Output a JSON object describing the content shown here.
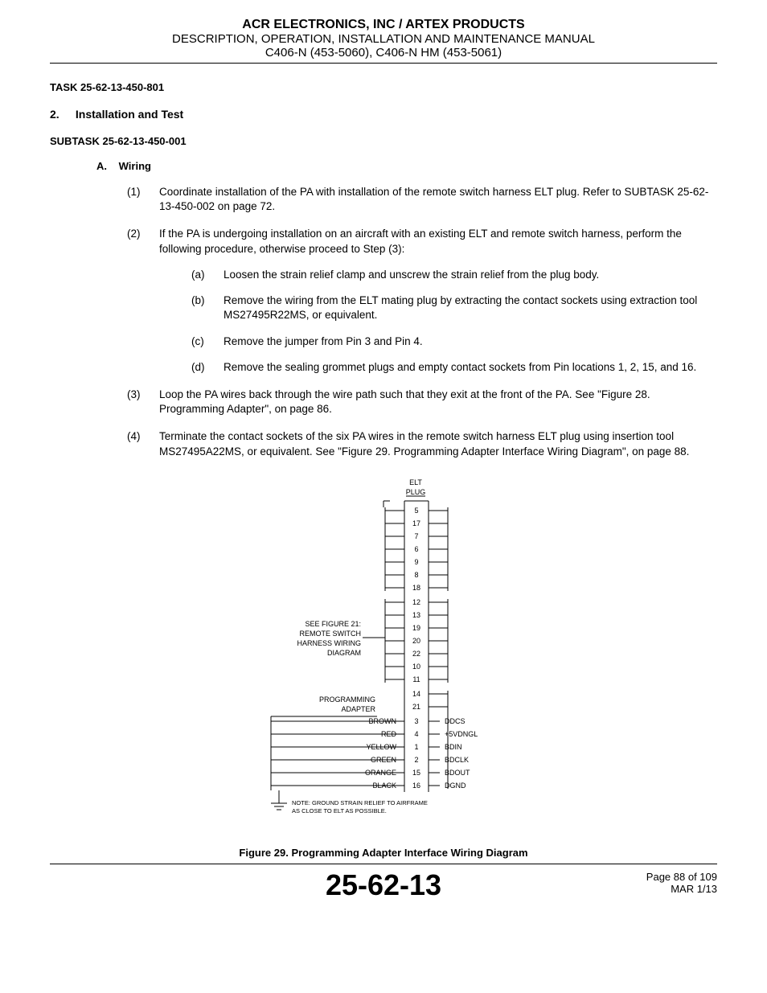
{
  "header": {
    "company": "ACR ELECTRONICS, INC / ARTEX PRODUCTS",
    "subtitle": "DESCRIPTION, OPERATION, INSTALLATION AND MAINTENANCE MANUAL",
    "models": "C406-N (453-5060), C406-N HM (453-5061)"
  },
  "task": "TASK  25-62-13-450-801",
  "section": {
    "num": "2.",
    "title": "Installation and Test"
  },
  "subtask": "SUBTASK  25-62-13-450-001",
  "subsection": {
    "letter": "A.",
    "title": "Wiring"
  },
  "items": {
    "1": {
      "marker": "(1)",
      "text": "Coordinate installation of the PA with installation of the remote switch harness ELT plug. Refer to SUBTASK 25-62-13-450-002 on page 72."
    },
    "2": {
      "marker": "(2)",
      "text": "If the PA is undergoing installation on an aircraft with an existing ELT and remote switch harness, perform the following procedure, otherwise proceed to Step (3):",
      "sub": {
        "a": {
          "marker": "(a)",
          "text": "Loosen the strain relief clamp and unscrew the strain relief from the plug body."
        },
        "b": {
          "marker": "(b)",
          "text": "Remove the wiring from the ELT mating plug by extracting the contact sockets using extraction tool MS27495R22MS, or equivalent."
        },
        "c": {
          "marker": "(c)",
          "text": "Remove the jumper from Pin 3 and Pin 4."
        },
        "d": {
          "marker": "(d)",
          "text": "Remove the sealing grommet plugs and empty contact sockets from Pin locations 1, 2, 15, and 16."
        }
      }
    },
    "3": {
      "marker": "(3)",
      "text": "Loop the PA wires back through the wire path such that they exit at the front of the PA. See \"Figure 28. Programming Adapter\", on page 86."
    },
    "4": {
      "marker": "(4)",
      "text": "Terminate the contact sockets of the six PA wires in the remote switch harness ELT plug using insertion tool MS27495A22MS, or equivalent. See \"Figure 29. Programming Adapter Interface Wiring Diagram\", on page 88."
    }
  },
  "figure": {
    "caption": "Figure 29.  Programming Adapter Interface Wiring Diagram",
    "plug_label_top": "ELT",
    "plug_label_bottom": "PLUG",
    "ref_note": {
      "l1": "SEE FIGURE 21:",
      "l2": "REMOTE SWITCH",
      "l3": "HARNESS WIRING",
      "l4": "DIAGRAM"
    },
    "prog_adapter": {
      "l1": "PROGRAMMING",
      "l2": "ADAPTER"
    },
    "ground_note": {
      "l1": "NOTE: GROUND STRAIN RELIEF TO AIRFRAME",
      "l2": "AS CLOSE TO ELT AS POSSIBLE."
    },
    "pins_top": [
      "5",
      "17",
      "7",
      "6",
      "9",
      "8",
      "18"
    ],
    "pins_mid": [
      "12",
      "13",
      "19",
      "20",
      "22",
      "10",
      "11"
    ],
    "pins_low": [
      "14",
      "21"
    ],
    "pins_pa": [
      "3",
      "4",
      "1",
      "2",
      "15",
      "16"
    ],
    "pa_colors": [
      "BROWN",
      "RED",
      "YELLOW",
      "GREEN",
      "ORANGE",
      "BLACK"
    ],
    "pa_signals": [
      "DDCS",
      "+5VDNGL",
      "BDIN",
      "BDCLK",
      "BDOUT",
      "DGND"
    ],
    "colors": {
      "stroke": "#000000",
      "text": "#000000",
      "bg": "#ffffff"
    },
    "font_sizes": {
      "diagram_label": 9,
      "pin": 9,
      "note": 7.5
    }
  },
  "footer": {
    "docnum": "25-62-13",
    "page": "Page 88 of 109",
    "date": "MAR 1/13"
  }
}
